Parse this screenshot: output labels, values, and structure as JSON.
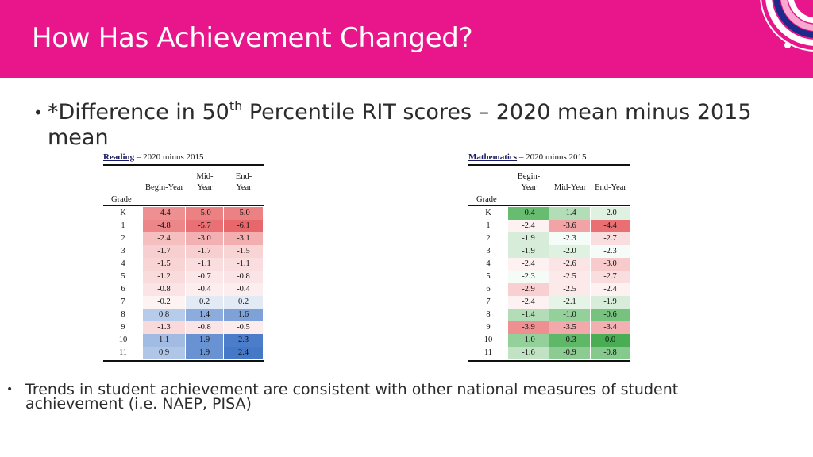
{
  "title": "How Has Achievement Changed?",
  "bullet1": {
    "prefix": "*Difference in 50",
    "sup": "th",
    "rest": " Percentile RIT scores – 2020 mean minus 2015 mean"
  },
  "bullet2": "Trends in student achievement are consistent with other national measures of student achievement (i.e. NAEP, PISA)",
  "colors": {
    "header": "#e8168a",
    "positive": "#4a7cc9",
    "negative": "#e8676b",
    "green": "#3faa4a"
  },
  "reading": {
    "subject": "Reading",
    "caption_rest": " – 2020 minus 2015",
    "grade_label": "Grade",
    "headers": [
      "Begin-Year",
      "Mid-\nYear",
      "End-\nYear"
    ],
    "grades": [
      "K",
      "1",
      "2",
      "3",
      "4",
      "5",
      "6",
      "7",
      "8",
      "9",
      "10",
      "11"
    ],
    "values": [
      [
        "-4.4",
        "-5.0",
        "-5.0"
      ],
      [
        "-4.8",
        "-5.7",
        "-6.1"
      ],
      [
        "-2.4",
        "-3.0",
        "-3.1"
      ],
      [
        "-1.7",
        "-1.7",
        "-1.5"
      ],
      [
        "-1.5",
        "-1.1",
        "-1.1"
      ],
      [
        "-1.2",
        "-0.7",
        "-0.8"
      ],
      [
        "-0.8",
        "-0.4",
        "-0.4"
      ],
      [
        "-0.2",
        "0.2",
        "0.2"
      ],
      [
        "0.8",
        "1.4",
        "1.6"
      ],
      [
        "-1.3",
        "-0.8",
        "-0.5"
      ],
      [
        "1.1",
        "1.9",
        "2.3"
      ],
      [
        "0.9",
        "1.9",
        "2.4"
      ]
    ]
  },
  "mathematics": {
    "subject": "Mathematics",
    "caption_rest": " – 2020 minus 2015",
    "grade_label": "Grade",
    "headers": [
      "Begin-\nYear",
      "Mid-Year",
      "End-Year"
    ],
    "grades": [
      "K",
      "1",
      "2",
      "3",
      "4",
      "5",
      "6",
      "7",
      "8",
      "9",
      "10",
      "11"
    ],
    "values": [
      [
        "-0.4",
        "-1.4",
        "-2.0"
      ],
      [
        "-2.4",
        "-3.6",
        "-4.4"
      ],
      [
        "-1.9",
        "-2.3",
        "-2.7"
      ],
      [
        "-1.9",
        "-2.0",
        "-2.3"
      ],
      [
        "-2.4",
        "-2.6",
        "-3.0"
      ],
      [
        "-2.3",
        "-2.5",
        "-2.7"
      ],
      [
        "-2.9",
        "-2.5",
        "-2.4"
      ],
      [
        "-2.4",
        "-2.1",
        "-1.9"
      ],
      [
        "-1.4",
        "-1.0",
        "-0.6"
      ],
      [
        "-3.9",
        "-3.5",
        "-3.4"
      ],
      [
        "-1.0",
        "-0.3",
        "0.0"
      ],
      [
        "-1.6",
        "-0.9",
        "-0.8"
      ]
    ]
  }
}
